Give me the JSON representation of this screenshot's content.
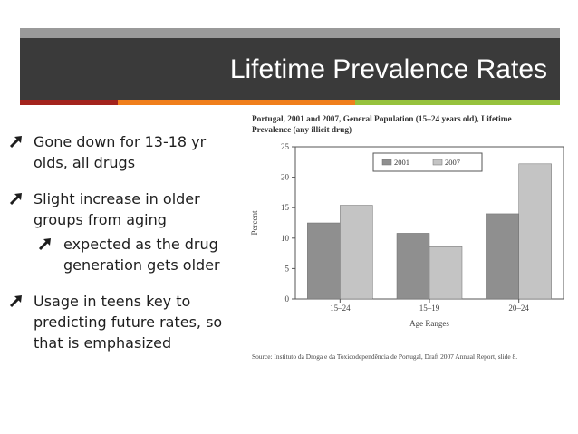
{
  "slide": {
    "title": "Lifetime Prevalence Rates",
    "colors": {
      "title_bar": "#3a3a3a",
      "top_strip": "#9a9a9a",
      "accent_red": "#a3231d",
      "accent_orange": "#f07f1c",
      "accent_green": "#96c23d",
      "bullet_arrow": "#1e1e1e"
    },
    "bullet_icon": "up-right-arrow-icon"
  },
  "bullets": [
    {
      "text": "Gone down for 13-18 yr olds, all drugs",
      "level": 1
    },
    {
      "text": "Slight increase in older groups from aging",
      "level": 1
    },
    {
      "text": "expected as the drug generation gets older",
      "level": 2
    },
    {
      "text": "Usage in teens key to predicting future rates, so that is emphasized",
      "level": 1
    }
  ],
  "chart_data": {
    "type": "bar",
    "title": "Portugal, 2001 and 2007, General Population (15–24 years old), Lifetime Prevalence (any illicit drug)",
    "xlabel": "Age Ranges",
    "ylabel": "Percent",
    "categories": [
      "15–24",
      "15–19",
      "20–24"
    ],
    "series": [
      {
        "name": "2001",
        "values": [
          12.5,
          10.8,
          14.0
        ],
        "color": "#8f8f8f"
      },
      {
        "name": "2007",
        "values": [
          15.4,
          8.6,
          22.2
        ],
        "color": "#c4c4c4"
      }
    ],
    "ylim": [
      0,
      25
    ],
    "yticks": [
      0,
      5,
      10,
      15,
      20,
      25
    ],
    "legend": "top-right",
    "grid": false,
    "source": "Source: Instituto da Droga e da Toxicodependência de Portugal, Draft 2007 Annual Report, slide 8."
  }
}
